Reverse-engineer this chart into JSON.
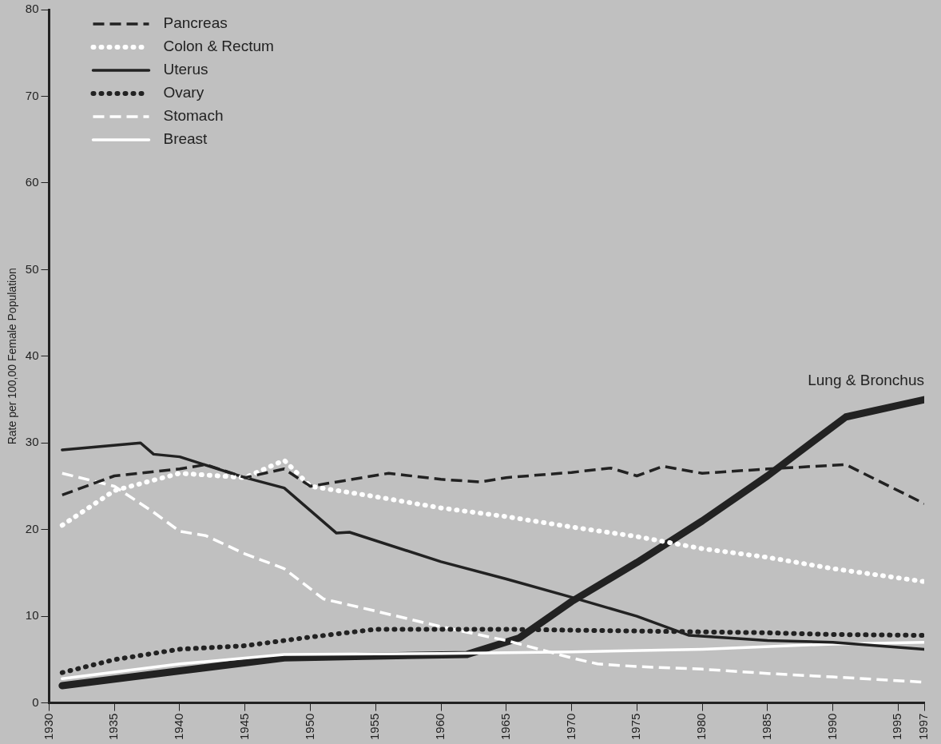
{
  "chart_data": {
    "type": "line",
    "ylabel": "Rate per 100,00 Female Population",
    "xlim": [
      1930,
      1997
    ],
    "xticks": [
      1930,
      1935,
      1940,
      1945,
      1950,
      1955,
      1960,
      1965,
      1970,
      1975,
      1980,
      1985,
      1990,
      1995,
      1997
    ],
    "ylim": [
      0,
      80
    ],
    "yticks": [
      0,
      10,
      20,
      30,
      40,
      50,
      60,
      70,
      80
    ],
    "grid": false,
    "legend": "top left",
    "marker": "none",
    "annotations": [
      {
        "text": "Lung & Bronchus",
        "x": 1997,
        "y": 35
      }
    ],
    "series": [
      {
        "name": "Pancreas",
        "color": "#222222",
        "line_style": "dashed",
        "x": [
          1931,
          1935,
          1940,
          1942,
          1945,
          1948,
          1950,
          1956,
          1960,
          1963,
          1965,
          1970,
          1973,
          1975,
          1977,
          1980,
          1985,
          1991,
          1997
        ],
        "values": [
          24,
          26.2,
          27,
          27.5,
          26,
          27,
          25,
          26.5,
          25.8,
          25.5,
          26,
          26.6,
          27.1,
          26.2,
          27.3,
          26.5,
          27,
          27.5,
          23
        ]
      },
      {
        "name": "Colon & Rectum",
        "color": "#ffffff",
        "line_style": "dotted",
        "x": [
          1931,
          1935,
          1940,
          1945,
          1948,
          1950,
          1955,
          1960,
          1965,
          1970,
          1975,
          1980,
          1985,
          1990,
          1997
        ],
        "values": [
          20.5,
          24.5,
          26.5,
          26,
          28,
          25,
          23.8,
          22.5,
          21.5,
          20.3,
          19.2,
          17.8,
          16.8,
          15.5,
          14
        ]
      },
      {
        "name": "Uterus",
        "color": "#222222",
        "line_style": "solid",
        "x": [
          1931,
          1937,
          1938,
          1940,
          1945,
          1948,
          1952,
          1953,
          1960,
          1965,
          1970,
          1975,
          1979,
          1985,
          1990,
          1997
        ],
        "values": [
          29.2,
          30,
          28.7,
          28.4,
          26,
          24.8,
          19.6,
          19.7,
          16.3,
          14.3,
          12.2,
          10,
          7.8,
          7.2,
          7,
          6.2
        ]
      },
      {
        "name": "Ovary",
        "color": "#222222",
        "line_style": "dotted",
        "x": [
          1931,
          1935,
          1940,
          1945,
          1948,
          1950,
          1955,
          1960,
          1965,
          1970,
          1975,
          1980,
          1985,
          1990,
          1997
        ],
        "values": [
          3.5,
          5,
          6.2,
          6.6,
          7.2,
          7.6,
          8.5,
          8.5,
          8.5,
          8.4,
          8.3,
          8.2,
          8.1,
          7.9,
          7.8
        ]
      },
      {
        "name": "Stomach",
        "color": "#ffffff",
        "line_style": "dashed",
        "x": [
          1931,
          1935,
          1938,
          1940,
          1942,
          1945,
          1948,
          1951,
          1955,
          1960,
          1965,
          1970,
          1972,
          1975,
          1980,
          1985,
          1990,
          1997
        ],
        "values": [
          26.5,
          25,
          22,
          19.8,
          19.3,
          17.2,
          15.5,
          12,
          10.6,
          8.8,
          7.2,
          5.2,
          4.5,
          4.2,
          3.9,
          3.4,
          3,
          2.4
        ]
      },
      {
        "name": "Breast",
        "color": "#ffffff",
        "line_style": "solid",
        "x": [
          1931,
          1940,
          1948,
          1960,
          1965,
          1970,
          1980,
          1990,
          1997
        ],
        "values": [
          2.8,
          4.5,
          5.6,
          5.7,
          5.8,
          5.9,
          6.2,
          6.8,
          7
        ]
      },
      {
        "color": "#222222",
        "line_style": "solid",
        "x": [
          1931,
          1940,
          1948,
          1955,
          1962,
          1966,
          1970,
          1975,
          1980,
          1985,
          1991,
          1997
        ],
        "values": [
          2,
          3.7,
          5.2,
          5.4,
          5.6,
          7.5,
          11.7,
          16.2,
          21,
          26.2,
          33,
          35
        ]
      }
    ]
  }
}
